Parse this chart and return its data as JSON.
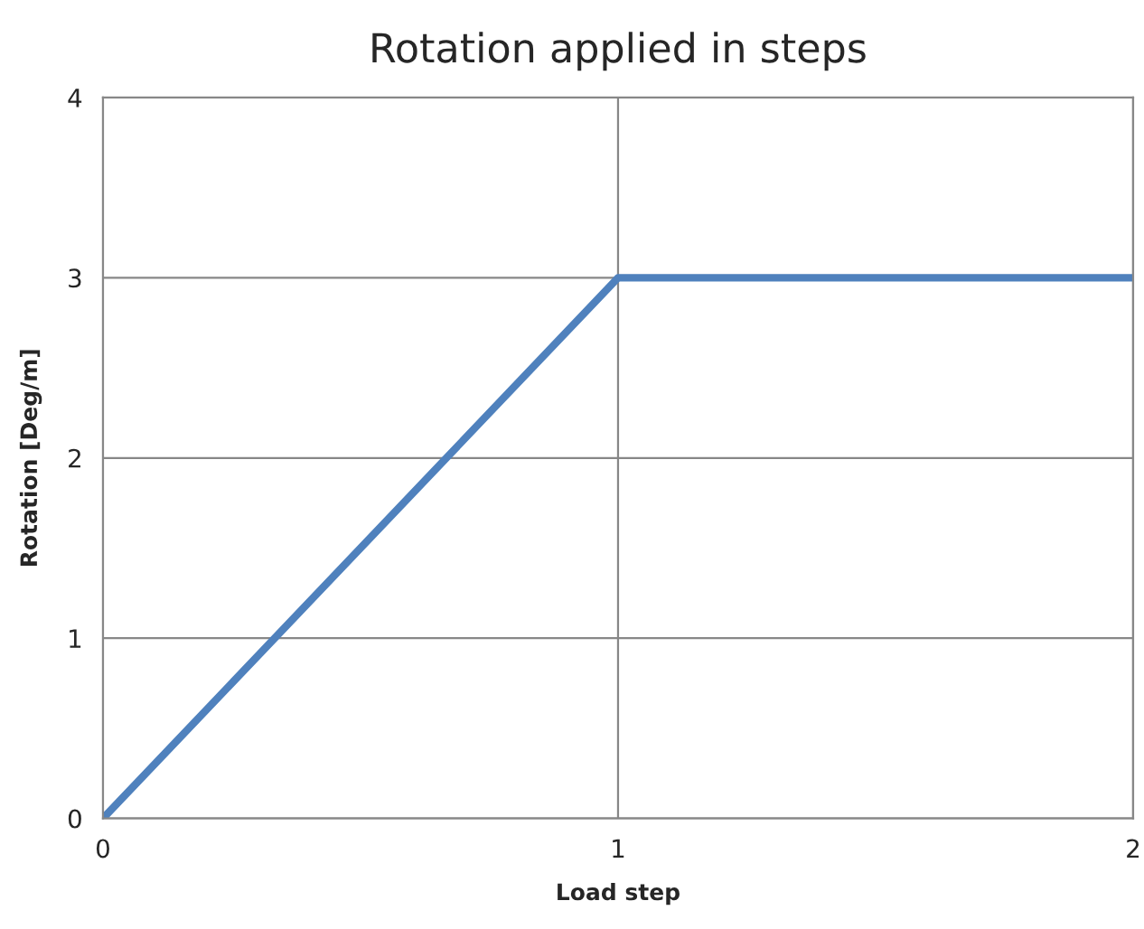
{
  "chart_data": {
    "type": "line",
    "title": "Rotation applied in steps",
    "xlabel": "Load step",
    "ylabel": "Rotation [Deg/m]",
    "x": [
      0,
      1,
      2
    ],
    "series": [
      {
        "color": "#4f81bd",
        "values": [
          0,
          3,
          3
        ]
      }
    ],
    "xlim": [
      0,
      2
    ],
    "xticks": [
      0,
      1,
      2
    ],
    "ylim": [
      0,
      4
    ],
    "yticks": [
      0,
      1,
      2,
      3,
      4
    ],
    "grid": true,
    "marker": "none",
    "line_style": "solid"
  }
}
